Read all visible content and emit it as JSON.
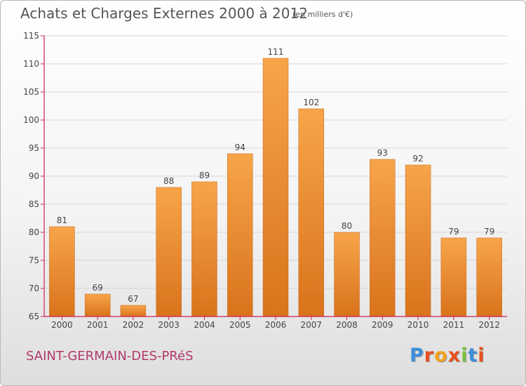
{
  "header": {
    "title": "Achats et Charges Externes 2000 à 2012",
    "unit_note": "(en milliers d'€)"
  },
  "footer": {
    "location": "SAINT-GERMAIN-DES-PRéS",
    "logo_text": "Proxiti",
    "logo_colors": [
      "#3b8fd9",
      "#e94e1b",
      "#f2a31b",
      "#e94e1b",
      "#7cc243",
      "#3b8fd9",
      "#e94e1b"
    ]
  },
  "colors": {
    "bar_top": "#f7a54a",
    "bar_bottom": "#d9731c",
    "axis": "#cc2255",
    "grid": "#d6d6d6",
    "label": "#b23a6a"
  },
  "chart_data": {
    "type": "bar",
    "categories": [
      "2000",
      "2001",
      "2002",
      "2003",
      "2004",
      "2005",
      "2006",
      "2007",
      "2008",
      "2009",
      "2010",
      "2011",
      "2012"
    ],
    "values": [
      81,
      69,
      67,
      88,
      89,
      94,
      111,
      102,
      80,
      93,
      92,
      79,
      79
    ],
    "ylim": [
      65,
      115
    ],
    "yticks": [
      65,
      70,
      75,
      80,
      85,
      90,
      95,
      100,
      105,
      110,
      115
    ],
    "grid": true,
    "legend": "none"
  }
}
